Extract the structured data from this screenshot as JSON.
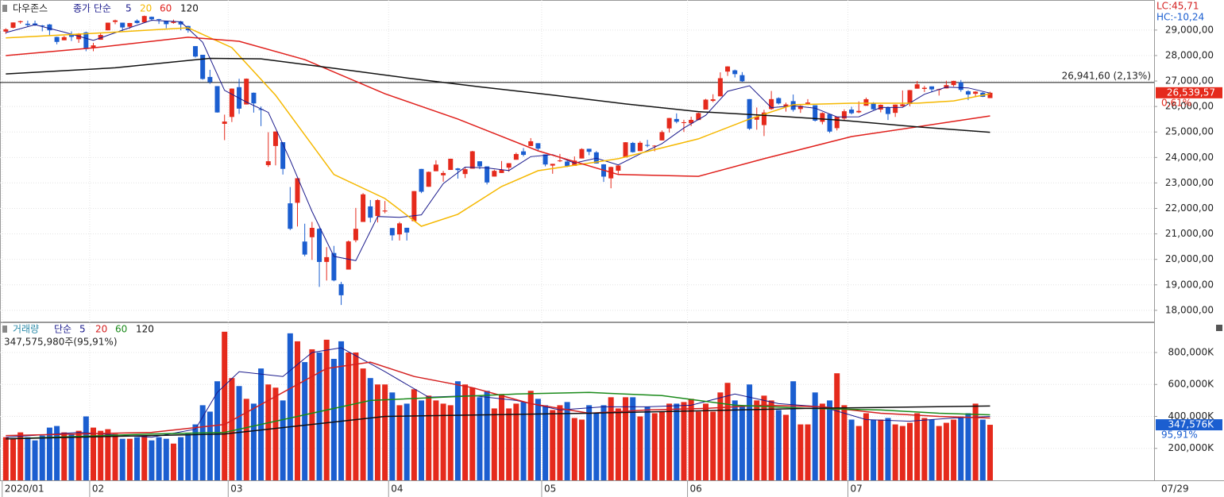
{
  "chart_data": [
    {
      "type": "candlestick",
      "title": "다우존스",
      "legend_prefix": "종가 단순",
      "annotations": [
        "LC:45,71",
        "HC:-10,24"
      ],
      "date_label": "07/29",
      "up_color": "#e52a1c",
      "down_color": "#1b5ed0",
      "xlim": [
        -0.8,
        157.5
      ],
      "xticks": [
        {
          "value": 0,
          "label": "2020/01"
        },
        {
          "value": 12,
          "label": "02"
        },
        {
          "value": 31,
          "label": "03"
        },
        {
          "value": 53,
          "label": "04"
        },
        {
          "value": 74,
          "label": "05"
        },
        {
          "value": 94,
          "label": "06"
        },
        {
          "value": 116,
          "label": "07"
        }
      ],
      "ylim": [
        17560,
        30180
      ],
      "yticks": [
        {
          "value": 18000,
          "label": "18,000,00"
        },
        {
          "value": 19000,
          "label": "19,000,00"
        },
        {
          "value": 20000,
          "label": "20,000,00"
        },
        {
          "value": 21000,
          "label": "21,000,00"
        },
        {
          "value": 22000,
          "label": "22,000,00"
        },
        {
          "value": 23000,
          "label": "23,000,00"
        },
        {
          "value": 24000,
          "label": "24,000,00"
        },
        {
          "value": 25000,
          "label": "25,000,00"
        },
        {
          "value": 26000,
          "label": "26,000,00"
        },
        {
          "value": 27000,
          "label": "27,000,00"
        },
        {
          "value": 28000,
          "label": "28,000,00"
        },
        {
          "value": 29000,
          "label": "29,000,00"
        }
      ],
      "grid": true,
      "reference_line": {
        "value": 26941.6,
        "label": "26,941,60 (2,13%)"
      },
      "last_price": {
        "value": 26539.57,
        "label": "26,539,57",
        "change_label": "0,61%"
      },
      "open": [
        28940,
        29090,
        29310,
        29250,
        29260,
        29180,
        29220,
        28730,
        28600,
        28820,
        28640,
        28910,
        28320,
        28620,
        28990,
        29320,
        29290,
        29130,
        29370,
        29300,
        29520,
        29430,
        29360,
        29280,
        29340,
        29160,
        28370,
        28030,
        27160,
        26800,
        25320,
        25590,
        26760,
        26080,
        26540,
        25900,
        23700,
        24450,
        24600,
        22200,
        22220,
        20700,
        20870,
        21200,
        19900,
        20250,
        19030,
        19600,
        20750,
        21470,
        22080,
        21700,
        21880,
        21230,
        20980,
        21240,
        21500,
        23550,
        22850,
        23460,
        23300,
        23510,
        23570,
        23350,
        23560,
        23850,
        23650,
        23250,
        23390,
        23600,
        23910,
        24240,
        24450,
        24560,
        24120,
        23680,
        23850,
        23840,
        23670,
        23960,
        24340,
        24200,
        23730,
        23180,
        23480,
        24000,
        24570,
        24250,
        24490,
        24450,
        24670,
        25140,
        25510,
        25350,
        25340,
        25470,
        25880,
        26220,
        26400,
        27370,
        27420,
        27230,
        26290,
        25480,
        25270,
        25900,
        26330,
        26000,
        26210,
        25900,
        26100,
        26050,
        25400,
        25700,
        25150,
        25530,
        25880,
        25770,
        26030,
        26120,
        25880,
        25960,
        25750,
        26010,
        26100,
        26700,
        26690,
        26790,
        26650,
        26710,
        26840,
        26950,
        26600,
        26500,
        26540,
        26330
      ],
      "high": [
        29070,
        29300,
        29370,
        29370,
        29370,
        29200,
        29240,
        28740,
        28770,
        28950,
        28880,
        28940,
        28500,
        28900,
        29290,
        29410,
        29290,
        29280,
        29420,
        29570,
        29530,
        29440,
        29360,
        29410,
        29360,
        29170,
        28370,
        28030,
        27440,
        26800,
        25680,
        26710,
        27090,
        27100,
        26550,
        26000,
        24990,
        25020,
        24600,
        22840,
        23190,
        21400,
        21470,
        21230,
        20480,
        20530,
        19120,
        20740,
        22020,
        22600,
        22330,
        22360,
        22290,
        21230,
        21470,
        21240,
        22680,
        23550,
        23450,
        23890,
        23470,
        23950,
        23590,
        23600,
        24260,
        23850,
        23650,
        23520,
        23860,
        23780,
        24190,
        24370,
        24760,
        24560,
        24120,
        23750,
        24140,
        23890,
        24040,
        24360,
        24340,
        24250,
        23740,
        23640,
        23690,
        24600,
        24610,
        24640,
        24690,
        24480,
        25060,
        25550,
        25730,
        25480,
        25600,
        25760,
        26300,
        26480,
        27340,
        27580,
        27450,
        27350,
        26290,
        25960,
        25870,
        26610,
        26360,
        26150,
        26470,
        26050,
        26290,
        26050,
        25770,
        25710,
        25600,
        25890,
        25990,
        26200,
        26350,
        26170,
        26080,
        26000,
        26080,
        26630,
        26650,
        27000,
        26810,
        26790,
        26700,
        27010,
        27010,
        27040,
        26640,
        26600,
        26570,
        26580
      ],
      "low": [
        28850,
        29070,
        29250,
        29130,
        29160,
        28950,
        28770,
        28440,
        28600,
        28570,
        28500,
        28170,
        28170,
        28620,
        28990,
        29230,
        28960,
        29050,
        29250,
        29300,
        29360,
        29240,
        29070,
        29250,
        28990,
        28900,
        27920,
        27050,
        26890,
        25760,
        24680,
        25390,
        25710,
        26080,
        25760,
        25230,
        23630,
        23690,
        23330,
        21150,
        21290,
        20120,
        19980,
        18920,
        19170,
        19140,
        18210,
        19600,
        20670,
        21470,
        21450,
        21450,
        21810,
        20740,
        20740,
        20740,
        21500,
        22600,
        22850,
        23460,
        23050,
        23510,
        23170,
        23190,
        23560,
        23540,
        22940,
        23250,
        23390,
        23440,
        23910,
        24040,
        24450,
        24260,
        23650,
        23360,
        23820,
        23620,
        23670,
        23960,
        24090,
        23760,
        23040,
        22790,
        23360,
        24000,
        24190,
        24250,
        24400,
        24240,
        24670,
        24980,
        25340,
        25000,
        25230,
        25460,
        25880,
        26170,
        26400,
        27200,
        27140,
        26970,
        25080,
        25090,
        24840,
        25870,
        26080,
        25800,
        25800,
        25750,
        26060,
        25410,
        25300,
        24960,
        25060,
        25460,
        25690,
        25740,
        26030,
        25870,
        25770,
        25470,
        25590,
        25990,
        26010,
        26700,
        26570,
        26560,
        26430,
        26710,
        26780,
        26580,
        26250,
        26390,
        26370,
        26330
      ],
      "close": [
        29030,
        29298,
        29348,
        29196,
        29186,
        29160,
        28990,
        28535,
        28723,
        28734,
        28859,
        28256,
        28399,
        28808,
        29290,
        29380,
        29103,
        29276,
        29276,
        29551,
        29423,
        29398,
        29232,
        29348,
        29219,
        28992,
        27961,
        27081,
        26957,
        25766,
        25409,
        26703,
        25917,
        27091,
        26121,
        25865,
        23851,
        25018,
        23553,
        21200,
        23185,
        20189,
        21237,
        19899,
        20087,
        19174,
        18592,
        20704,
        21200,
        22552,
        21637,
        22327,
        21917,
        20944,
        21413,
        21053,
        22680,
        22654,
        23434,
        23720,
        23390,
        23950,
        23505,
        23538,
        24242,
        23650,
        23019,
        23475,
        23516,
        23775,
        24134,
        24102,
        24634,
        24346,
        23724,
        23750,
        23883,
        23664,
        23875,
        24331,
        24222,
        23765,
        23248,
        23625,
        23685,
        24597,
        24207,
        24576,
        24474,
        24465,
        24995,
        25548,
        25401,
        25383,
        25475,
        25742,
        26270,
        26282,
        27111,
        27572,
        27272,
        26990,
        25128,
        25606,
        25763,
        26290,
        26120,
        26080,
        25871,
        26025,
        26156,
        25445,
        25745,
        25016,
        25596,
        25813,
        25735,
        25827,
        26287,
        25890,
        26067,
        25706,
        26075,
        26086,
        26643,
        26870,
        26735,
        26672,
        26680,
        26840,
        27005,
        26652,
        26470,
        26584,
        26379,
        26540
      ],
      "series": [
        {
          "name": "5",
          "color": "#1a1a8c",
          "x": [
            0,
            4,
            8,
            12,
            16,
            20,
            24,
            27,
            30,
            33,
            36,
            39,
            42,
            45,
            48,
            51,
            54,
            57,
            60,
            63,
            66,
            69,
            72,
            75,
            78,
            81,
            84,
            87,
            90,
            93,
            96,
            99,
            102,
            105,
            108,
            111,
            114,
            117,
            120,
            123,
            126,
            129,
            132,
            135
          ],
          "values": [
            28900,
            29212,
            28919,
            28594,
            28996,
            29385,
            29324,
            28520,
            26635,
            26177,
            25769,
            23897,
            21876,
            20117,
            19951,
            21684,
            21648,
            21749,
            22976,
            23621,
            23591,
            23487,
            24032,
            24111,
            23779,
            23971,
            23709,
            24138,
            24543,
            25158,
            25654,
            26595,
            26815,
            25955,
            26025,
            25935,
            25592,
            25597,
            25961,
            25965,
            26482,
            26759,
            26729,
            26525
          ]
        },
        {
          "name": "20",
          "color": "#f5b800",
          "x": [
            0,
            12,
            25,
            31,
            37,
            45,
            52,
            57,
            62,
            68,
            73,
            84,
            95,
            102,
            108,
            116,
            125,
            130,
            135
          ],
          "values": [
            28690,
            28870,
            29090,
            28310,
            26440,
            23330,
            22390,
            21300,
            21770,
            22860,
            23480,
            23950,
            24730,
            25510,
            26070,
            26130,
            26130,
            26220,
            26500
          ]
        },
        {
          "name": "60",
          "color": "#e0201c",
          "x": [
            0,
            12,
            25,
            32,
            41,
            52,
            62,
            73,
            84,
            95,
            104,
            116,
            125,
            135
          ],
          "values": [
            28000,
            28300,
            28720,
            28560,
            27840,
            26500,
            25510,
            24260,
            23330,
            23260,
            23950,
            24820,
            25200,
            25630
          ]
        },
        {
          "name": "120",
          "color": "#111111",
          "x": [
            0,
            15,
            28,
            35,
            45,
            55,
            65,
            75,
            85,
            95,
            105,
            115,
            125,
            135
          ],
          "values": [
            27280,
            27520,
            27890,
            27870,
            27500,
            27120,
            26770,
            26450,
            26100,
            25800,
            25640,
            25450,
            25200,
            24990
          ]
        }
      ]
    },
    {
      "type": "bar",
      "title": "거래량",
      "legend_prefix": "단순",
      "summary": "347,575,980주(95,91%)",
      "ylim": [
        0,
        988800
      ],
      "yticks": [
        {
          "value": 200000,
          "label": "200,000K"
        },
        {
          "value": 400000,
          "label": "400,000K"
        },
        {
          "value": 600000,
          "label": "600,000K"
        },
        {
          "value": 800000,
          "label": "800,000K"
        }
      ],
      "last_volume": {
        "value": 347576,
        "label": "347,576K",
        "pct_label": "95,91%"
      },
      "values": [
        270000,
        260000,
        300000,
        270000,
        250000,
        280000,
        330000,
        340000,
        300000,
        290000,
        310000,
        400000,
        330000,
        310000,
        320000,
        290000,
        260000,
        260000,
        270000,
        280000,
        250000,
        270000,
        260000,
        230000,
        270000,
        290000,
        350000,
        470000,
        430000,
        620000,
        930000,
        640000,
        590000,
        510000,
        480000,
        700000,
        600000,
        580000,
        500000,
        920000,
        870000,
        740000,
        820000,
        800000,
        880000,
        760000,
        870000,
        800000,
        800000,
        700000,
        640000,
        600000,
        600000,
        550000,
        470000,
        480000,
        570000,
        500000,
        530000,
        500000,
        480000,
        470000,
        620000,
        600000,
        580000,
        520000,
        560000,
        450000,
        540000,
        450000,
        480000,
        490000,
        560000,
        510000,
        470000,
        440000,
        470000,
        490000,
        390000,
        380000,
        470000,
        420000,
        470000,
        520000,
        450000,
        520000,
        520000,
        400000,
        460000,
        420000,
        430000,
        480000,
        480000,
        490000,
        510000,
        430000,
        480000,
        430000,
        550000,
        610000,
        500000,
        460000,
        600000,
        500000,
        530000,
        500000,
        440000,
        410000,
        620000,
        350000,
        350000,
        550000,
        480000,
        500000,
        670000,
        470000,
        380000,
        340000,
        420000,
        380000,
        380000,
        390000,
        350000,
        340000,
        360000,
        420000,
        390000,
        380000,
        340000,
        360000,
        380000,
        400000,
        420000,
        480000,
        380000,
        347576
      ],
      "series": [
        {
          "name": "5",
          "color": "#1a1a8c",
          "x": [
            0,
            10,
            20,
            26,
            29,
            32,
            38,
            42,
            46,
            52,
            58,
            64,
            70,
            76,
            82,
            88,
            94,
            100,
            106,
            112,
            118,
            124,
            130,
            135
          ],
          "values": [
            270000,
            300000,
            270000,
            320000,
            550000,
            680000,
            650000,
            800000,
            830000,
            680000,
            520000,
            530000,
            500000,
            440000,
            460000,
            460000,
            470000,
            540000,
            480000,
            460000,
            380000,
            370000,
            390000,
            400000
          ]
        },
        {
          "name": "20",
          "color": "#d42020",
          "x": [
            0,
            20,
            30,
            36,
            44,
            50,
            56,
            64,
            72,
            80,
            88,
            96,
            104,
            112,
            120,
            128,
            135
          ],
          "values": [
            280000,
            300000,
            350000,
            500000,
            700000,
            740000,
            650000,
            580000,
            480000,
            420000,
            440000,
            450000,
            470000,
            460000,
            420000,
            400000,
            390000
          ]
        },
        {
          "name": "60",
          "color": "#1a8a1a",
          "x": [
            0,
            20,
            30,
            40,
            50,
            60,
            70,
            80,
            90,
            100,
            110,
            120,
            128,
            135
          ],
          "values": [
            260000,
            290000,
            300000,
            400000,
            500000,
            520000,
            540000,
            550000,
            530000,
            470000,
            450000,
            440000,
            420000,
            410000
          ]
        },
        {
          "name": "120",
          "color": "#111111",
          "x": [
            0,
            30,
            52,
            80,
            110,
            135
          ],
          "values": [
            260000,
            290000,
            400000,
            420000,
            450000,
            465000
          ]
        }
      ]
    }
  ]
}
